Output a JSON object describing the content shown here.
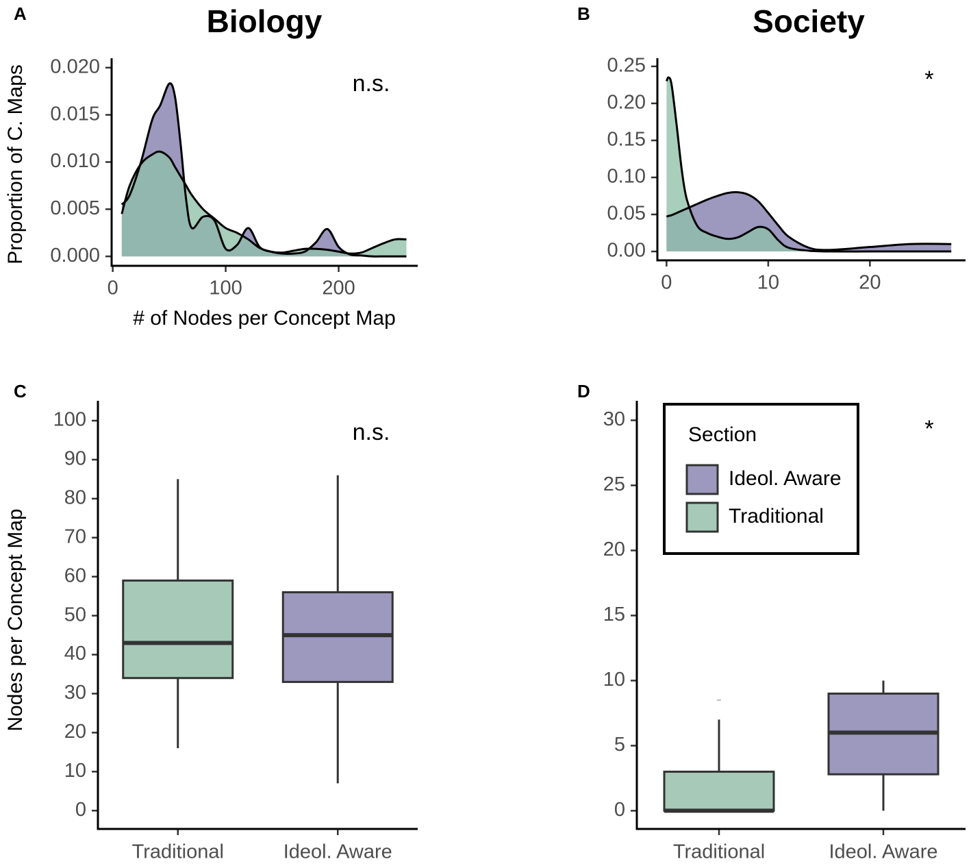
{
  "chart_data": [
    {
      "type": "density",
      "panel": "A",
      "title": "Biology",
      "annotation": "n.s.",
      "xlabel": "# of Nodes per Concept Map",
      "ylabel": "Proportion of C. Maps",
      "x": [
        8,
        15,
        25,
        35,
        42,
        50,
        55,
        60,
        65,
        70,
        80,
        90,
        100,
        110,
        120,
        130,
        140,
        150,
        160,
        170,
        180,
        190,
        200,
        210,
        220,
        230,
        240,
        250,
        260
      ],
      "series": [
        {
          "color": "#9d98be",
          "values": [
            0.0055,
            0.0065,
            0.01,
            0.0145,
            0.016,
            0.0183,
            0.017,
            0.012,
            0.006,
            0.003,
            0.0042,
            0.0038,
            0.0008,
            0.0012,
            0.003,
            0.001,
            0.0005,
            0.0003,
            0.0003,
            0.0005,
            0.0015,
            0.0029,
            0.001,
            0.0002,
            0.0001,
            0,
            0,
            0,
            0
          ]
        },
        {
          "color": "#8fc0a9",
          "values": [
            0.0045,
            0.0075,
            0.0098,
            0.0108,
            0.0111,
            0.0105,
            0.0095,
            0.0085,
            0.0075,
            0.0065,
            0.005,
            0.004,
            0.003,
            0.0025,
            0.0018,
            0.0009,
            0.0005,
            0.0004,
            0.0006,
            0.0008,
            0.0008,
            0.0007,
            0.0005,
            0.0003,
            0.0004,
            0.0009,
            0.0014,
            0.0018,
            0.0018
          ]
        }
      ],
      "xlim": [
        -1,
        270
      ],
      "xticks": [
        0,
        100,
        200
      ],
      "ylim": [
        -0.001,
        0.021
      ],
      "yticks": [
        {
          "value": 0,
          "label": "0.000"
        },
        {
          "value": 0.005,
          "label": "0.005"
        },
        {
          "value": 0.01,
          "label": "0.010"
        },
        {
          "value": 0.015,
          "label": "0.015"
        },
        {
          "value": 0.02,
          "label": "0.020"
        }
      ]
    },
    {
      "type": "density",
      "panel": "B",
      "title": "Society",
      "annotation": "*",
      "x": [
        0,
        0.2,
        0.5,
        1,
        1.5,
        2,
        3,
        4,
        5,
        6,
        7,
        8,
        9,
        10,
        11,
        12,
        14,
        16,
        20,
        24,
        28
      ],
      "series": [
        {
          "color": "#9d98be",
          "values": [
            0.047,
            0.048,
            0.049,
            0.052,
            0.055,
            0.058,
            0.064,
            0.07,
            0.075,
            0.079,
            0.08,
            0.077,
            0.068,
            0.052,
            0.035,
            0.02,
            0.005,
            0.002,
            0.006,
            0.01,
            0.01
          ]
        },
        {
          "color": "#8fc0a9",
          "values": [
            0.23,
            0.235,
            0.225,
            0.17,
            0.11,
            0.07,
            0.035,
            0.025,
            0.02,
            0.017,
            0.019,
            0.026,
            0.033,
            0.03,
            0.015,
            0.005,
            0.001,
            0,
            0,
            0,
            0
          ]
        }
      ],
      "xlim": [
        -0.9,
        29.4
      ],
      "xticks": [
        0,
        10,
        20
      ],
      "ylim": [
        -0.012,
        0.261
      ],
      "yticks": [
        {
          "value": 0,
          "label": "0.00"
        },
        {
          "value": 0.05,
          "label": "0.05"
        },
        {
          "value": 0.1,
          "label": "0.10"
        },
        {
          "value": 0.15,
          "label": "0.15"
        },
        {
          "value": 0.2,
          "label": "0.20"
        },
        {
          "value": 0.25,
          "label": "0.25"
        }
      ]
    },
    {
      "type": "box",
      "panel": "C",
      "annotation": "n.s.",
      "ylabel": "Nodes per Concept Map",
      "categories": [
        "Traditional",
        "Ideol. Aware"
      ],
      "boxes": [
        {
          "color": "#a6c9b8",
          "min": 16,
          "q1": 34,
          "median": 43,
          "q3": 59,
          "max": 85
        },
        {
          "color": "#9d98be",
          "min": 7,
          "q1": 33,
          "median": 45,
          "q3": 56,
          "max": 86
        }
      ],
      "ylim": [
        -4.7,
        105.1
      ],
      "yticks": [
        0,
        10,
        20,
        30,
        40,
        50,
        60,
        70,
        80,
        90,
        100
      ]
    },
    {
      "type": "box",
      "panel": "D",
      "annotation": "*",
      "categories": [
        "Traditional",
        "Ideol. Aware"
      ],
      "boxes": [
        {
          "color": "#a6c9b8",
          "min": 0,
          "q1": 0,
          "median": 0,
          "q3": 3,
          "max": 7,
          "outliers": [
            8.5
          ]
        },
        {
          "color": "#9d98be",
          "min": 0,
          "q1": 2.8,
          "median": 6,
          "q3": 9,
          "max": 10
        }
      ],
      "ylim": [
        -1.4,
        31.5
      ],
      "yticks": [
        0,
        5,
        10,
        15,
        20,
        25,
        30
      ],
      "legend": {
        "title": "Section",
        "entries": [
          {
            "name": "Ideol. Aware",
            "color": "#9d98be"
          },
          {
            "name": "Traditional",
            "color": "#a6c9b8"
          }
        ]
      }
    }
  ]
}
